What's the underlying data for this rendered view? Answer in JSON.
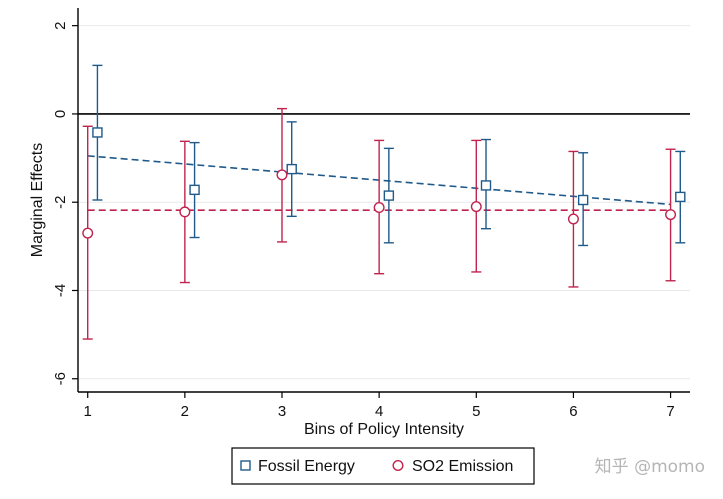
{
  "chart_data": {
    "type": "scatter",
    "title": "",
    "xlabel": "Bins of Policy Intensity",
    "ylabel": "Marginal Effects",
    "x": [
      1,
      2,
      3,
      4,
      5,
      6,
      7
    ],
    "xlim": [
      0.9,
      7.2
    ],
    "ylim": [
      -6.3,
      2.4
    ],
    "xticks": [
      1,
      2,
      3,
      4,
      5,
      6,
      7
    ],
    "yticks": [
      -6,
      -4,
      -2,
      0,
      2
    ],
    "grid": true,
    "reference_line": 0,
    "legend_position": "bottom",
    "series": [
      {
        "name": "Fossil Energy",
        "marker": "square",
        "color": "#1f5a8a",
        "x_offset": 0.1,
        "values": [
          -0.42,
          -1.72,
          -1.25,
          -1.85,
          -1.62,
          -1.95,
          -1.88
        ],
        "ci_lower": [
          -1.95,
          -2.8,
          -2.32,
          -2.92,
          -2.6,
          -2.98,
          -2.92
        ],
        "ci_upper": [
          1.1,
          -0.65,
          -0.18,
          -0.78,
          -0.58,
          -0.88,
          -0.85
        ],
        "fit_line": {
          "x": [
            1,
            7
          ],
          "y": [
            -0.95,
            -2.05
          ]
        }
      },
      {
        "name": "SO2 Emission",
        "marker": "circle",
        "color": "#c0244e",
        "x_offset": 0.0,
        "values": [
          -2.7,
          -2.22,
          -1.38,
          -2.12,
          -2.1,
          -2.38,
          -2.28
        ],
        "ci_lower": [
          -5.1,
          -3.82,
          -2.9,
          -3.62,
          -3.58,
          -3.92,
          -3.78
        ],
        "ci_upper": [
          -0.28,
          -0.62,
          0.12,
          -0.6,
          -0.6,
          -0.85,
          -0.8
        ],
        "fit_line": {
          "x": [
            1,
            7
          ],
          "y": [
            -2.18,
            -2.18
          ]
        }
      }
    ]
  },
  "watermark": "知乎 @momo"
}
